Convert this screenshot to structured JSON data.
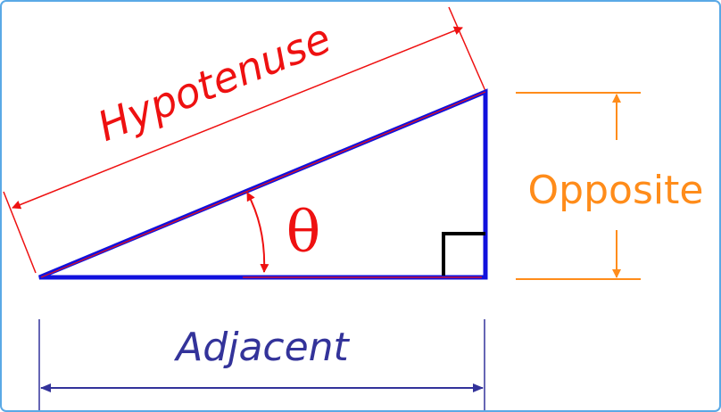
{
  "labels": {
    "hypotenuse": "Hypotenuse",
    "opposite": "Opposite",
    "adjacent": "Adjacent",
    "angle": "θ"
  },
  "colors": {
    "triangle": "#1111dd",
    "hypotenuse": "#ee1111",
    "opposite": "#ff8c1a",
    "adjacent": "#33339a",
    "angle": "#ee1111",
    "right_angle_marker": "#000000",
    "frame": "#5aa9e6"
  }
}
